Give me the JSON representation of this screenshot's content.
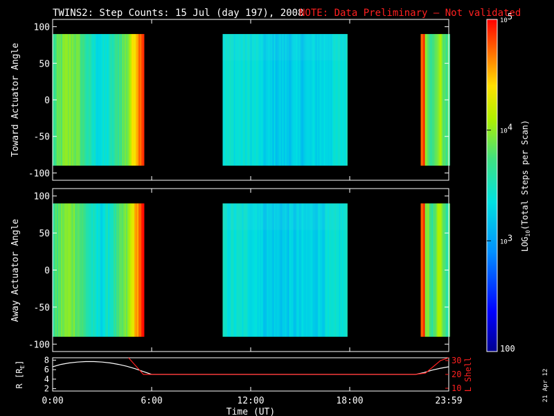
{
  "title": "TWINS2: Step Counts: 15 Jul (day 197), 2008",
  "note": "NOTE: Data Preliminary — Not validated",
  "date_stamp": "21 Apr 12",
  "colors": {
    "background": "#000000",
    "text": "#ffffff",
    "note": "#ff2020",
    "lshell": "#ff2020",
    "radius": "#ffffff"
  },
  "chart_data": [
    {
      "type": "heatmap",
      "panel": "toward",
      "ylabel": "Toward Actuator Angle",
      "ylim": [
        -110,
        110
      ],
      "yticks": [
        100,
        50,
        0,
        -50,
        -100
      ],
      "angle_range": [
        -90,
        90
      ],
      "xlim_hours": [
        0,
        24
      ],
      "data_blocks_hours": [
        [
          0.0,
          5.5
        ],
        [
          10.3,
          17.8
        ],
        [
          22.3,
          24.0
        ]
      ],
      "colorscale_note": "value increases from blue through cyan, green, yellow to red"
    },
    {
      "type": "heatmap",
      "panel": "away",
      "ylabel": "Away Actuator Angle",
      "ylim": [
        -110,
        110
      ],
      "yticks": [
        100,
        50,
        0,
        -50,
        -100
      ],
      "angle_range": [
        -90,
        90
      ],
      "xlim_hours": [
        0,
        24
      ],
      "data_blocks_hours": [
        [
          0.0,
          5.5
        ],
        [
          10.3,
          17.8
        ],
        [
          22.3,
          24.0
        ]
      ]
    },
    {
      "type": "line",
      "panel": "orbit",
      "xlabel": "Time (UT)",
      "xticks": [
        "0:00",
        "6:00",
        "12:00",
        "18:00",
        "23:59"
      ],
      "xtick_hours": [
        0,
        6,
        12,
        18,
        24
      ],
      "ylabel_left": "R [RE]",
      "ylabel_left_parts": [
        "R [R",
        "E",
        "]"
      ],
      "yticks_left": [
        "8",
        "6",
        "4",
        "2"
      ],
      "ylim_left": [
        1.5,
        8.5
      ],
      "ylabel_right": "L Shell",
      "yticks_right": [
        "30",
        "20",
        "10"
      ],
      "ylim_right": [
        8,
        32
      ],
      "series": [
        {
          "axis": "left",
          "x_hours": [
            0,
            0.5,
            1,
            1.5,
            2,
            2.5,
            3,
            3.5,
            4,
            4.5,
            5,
            5.5,
            6,
            12,
            18,
            22,
            22.5,
            23,
            23.5,
            24
          ],
          "values": [
            6.6,
            7.1,
            7.4,
            7.6,
            7.7,
            7.7,
            7.6,
            7.4,
            7.1,
            6.7,
            6.2,
            5.6,
            5.0,
            5.0,
            5.0,
            5.0,
            5.4,
            5.9,
            6.3,
            6.6
          ]
        },
        {
          "axis": "right",
          "x_hours": [
            4.6,
            5.5,
            12,
            18,
            22,
            22.6,
            23.0,
            23.5,
            24
          ],
          "values": [
            32,
            20,
            20,
            20,
            20,
            21,
            25,
            30,
            32
          ]
        }
      ]
    }
  ],
  "colorbar": {
    "label_parts": [
      "LOG",
      "10",
      "(Total Steps per Scan)"
    ],
    "ticks": [
      {
        "text_base": "10",
        "text_exp": "5",
        "value": 100000
      },
      {
        "text_base": "10",
        "text_exp": "4",
        "value": 10000
      },
      {
        "text_base": "10",
        "text_exp": "3",
        "value": 1000
      },
      {
        "text_base": "100",
        "text_exp": "",
        "value": 100
      }
    ],
    "range": [
      100,
      100000
    ]
  }
}
